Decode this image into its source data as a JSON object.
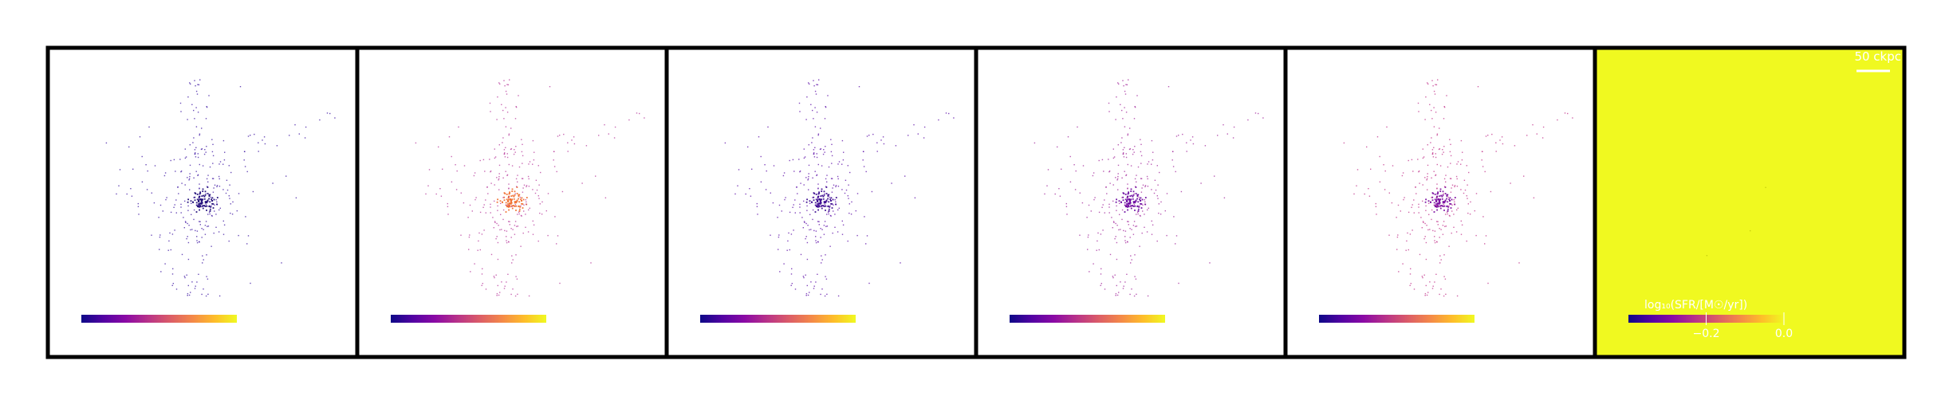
{
  "chart_data": {
    "type": "scatter",
    "layout": "six side-by-side map panels",
    "grid": false,
    "panels": [
      {
        "index": 1,
        "background": "#ffffff",
        "dominant_point_color": "#3a12a0",
        "central_point_color": "#1d0a78",
        "colorbar": {
          "cmap": "plasma"
        }
      },
      {
        "index": 2,
        "background": "#ffffff",
        "dominant_point_color": "#b6369a",
        "central_point_color": "#f07030",
        "colorbar": {
          "cmap": "plasma"
        }
      },
      {
        "index": 3,
        "background": "#ffffff",
        "dominant_point_color": "#5a0aa6",
        "central_point_color": "#3b0b8f",
        "colorbar": {
          "cmap": "plasma"
        }
      },
      {
        "index": 4,
        "background": "#ffffff",
        "dominant_point_color": "#a0249a",
        "central_point_color": "#6a0aa0",
        "colorbar": {
          "cmap": "plasma"
        }
      },
      {
        "index": 5,
        "background": "#ffffff",
        "dominant_point_color": "#c0308a",
        "central_point_color": "#7a0ea0",
        "colorbar": {
          "cmap": "plasma"
        }
      },
      {
        "index": 6,
        "background": "#f0f920",
        "dominant_point_color": "#c8cf10",
        "central_point_color": "#c8cf10",
        "scalebar": {
          "label": "50 ckpc"
        },
        "colorbar": {
          "cmap": "plasma",
          "label": "log₁₀(SFR/[M☉/yr])",
          "ticks": [
            {
              "value": -0.2,
              "label": "−0.2"
            },
            {
              "value": 0.0,
              "label": "0.0"
            }
          ],
          "range": [
            -0.4,
            0.0
          ]
        }
      }
    ]
  },
  "colors": {
    "frame": "#000000",
    "plasma": [
      "#0d0887",
      "#5302a3",
      "#8b0aa5",
      "#b83289",
      "#db5c68",
      "#f48849",
      "#febd2a",
      "#f0f921"
    ]
  }
}
